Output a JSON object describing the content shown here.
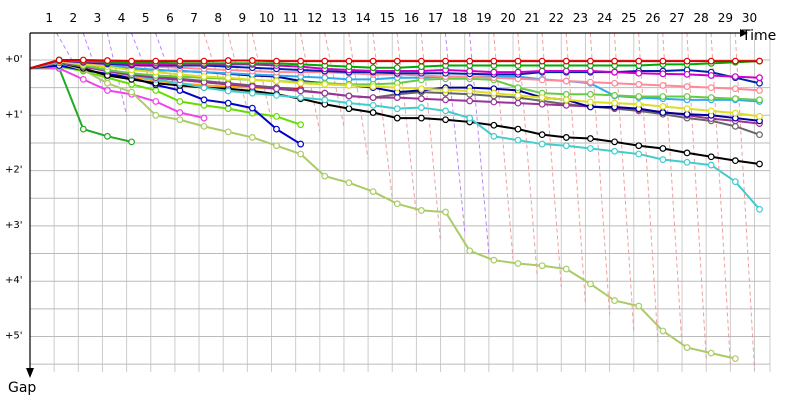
{
  "chart_data": {
    "type": "line",
    "xlabel": "Time",
    "ylabel": "Gap",
    "x_ticks": [
      1,
      2,
      3,
      4,
      5,
      6,
      7,
      8,
      9,
      10,
      11,
      12,
      13,
      14,
      15,
      16,
      17,
      18,
      19,
      20,
      21,
      22,
      23,
      24,
      25,
      26,
      27,
      28,
      29,
      30
    ],
    "y_ticks": [
      {
        "value": 0,
        "label": "+0'"
      },
      {
        "value": 1,
        "label": "+1'"
      },
      {
        "value": 2,
        "label": "+2'"
      },
      {
        "value": 3,
        "label": "+3'"
      },
      {
        "value": 4,
        "label": "+4'"
      },
      {
        "value": 5,
        "label": "+5'"
      }
    ],
    "xlim": [
      0,
      31
    ],
    "ylim": [
      0,
      5.8
    ],
    "series": [
      {
        "color": "#22aa22",
        "values": [
          0.15,
          1.25,
          1.38,
          1.48
        ]
      },
      {
        "color": "#ee44ee",
        "values": [
          0.15,
          0.35,
          0.55,
          0.62,
          0.75,
          0.95,
          1.05
        ]
      },
      {
        "color": "#66dd00",
        "values": [
          0.12,
          0.2,
          0.32,
          0.44,
          0.55,
          0.75,
          0.82,
          0.88,
          0.96,
          1.02,
          1.17
        ]
      },
      {
        "color": "#0000cc",
        "values": [
          0.1,
          0.18,
          0.25,
          0.32,
          0.45,
          0.55,
          0.72,
          0.78,
          0.87,
          1.25,
          1.52
        ]
      },
      {
        "color": "#ffaa00",
        "values": [
          0.02,
          0.12,
          0.2,
          0.3,
          0.38,
          0.42,
          0.46,
          0.48,
          0.5,
          0.52,
          0.55
        ]
      },
      {
        "color": "#ee0000",
        "values": [
          0.01,
          0.1,
          0.18,
          0.26,
          0.32,
          0.36,
          0.4,
          0.44,
          0.47,
          0.5,
          0.53
        ]
      },
      {
        "color": "#aacc66",
        "values": [
          0.05,
          0.18,
          0.42,
          0.58,
          1.0,
          1.08,
          1.2,
          1.3,
          1.4,
          1.55,
          1.7,
          2.1,
          2.22,
          2.38,
          2.6,
          2.72,
          2.75,
          3.45,
          3.62,
          3.68,
          3.72,
          3.78,
          4.05,
          4.35,
          4.45,
          4.9,
          5.2,
          5.3,
          5.4
        ]
      },
      {
        "color": "#000000",
        "values": [
          0.05,
          0.15,
          0.28,
          0.35,
          0.42,
          0.46,
          0.5,
          0.52,
          0.56,
          0.62,
          0.7,
          0.8,
          0.88,
          0.95,
          1.05,
          1.05,
          1.08,
          1.12,
          1.18,
          1.25,
          1.35,
          1.4,
          1.42,
          1.48,
          1.55,
          1.6,
          1.68,
          1.75,
          1.82,
          1.88
        ]
      },
      {
        "color": "#44cccc",
        "values": [
          0.05,
          0.12,
          0.2,
          0.28,
          0.35,
          0.42,
          0.5,
          0.56,
          0.6,
          0.64,
          0.68,
          0.72,
          0.78,
          0.82,
          0.88,
          0.86,
          0.92,
          1.05,
          1.38,
          1.45,
          1.52,
          1.55,
          1.6,
          1.65,
          1.7,
          1.8,
          1.85,
          1.9,
          2.2,
          2.7
        ]
      },
      {
        "color": "#666666",
        "values": [
          0.03,
          0.1,
          0.18,
          0.25,
          0.3,
          0.34,
          0.38,
          0.42,
          0.46,
          0.5,
          0.55,
          0.6,
          0.65,
          0.68,
          0.62,
          0.58,
          0.6,
          0.62,
          0.65,
          0.68,
          0.74,
          0.8,
          0.84,
          0.88,
          0.92,
          0.98,
          1.05,
          1.1,
          1.2,
          1.35
        ]
      },
      {
        "color": "#993399",
        "values": [
          0.04,
          0.12,
          0.2,
          0.27,
          0.32,
          0.36,
          0.4,
          0.44,
          0.48,
          0.52,
          0.56,
          0.6,
          0.65,
          0.68,
          0.68,
          0.7,
          0.72,
          0.74,
          0.76,
          0.78,
          0.8,
          0.82,
          0.84,
          0.86,
          0.9,
          0.94,
          1.0,
          1.06,
          1.1,
          1.15
        ]
      },
      {
        "color": "#000099",
        "values": [
          0.03,
          0.08,
          0.12,
          0.15,
          0.18,
          0.2,
          0.22,
          0.25,
          0.28,
          0.3,
          0.38,
          0.42,
          0.45,
          0.5,
          0.58,
          0.55,
          0.5,
          0.5,
          0.52,
          0.55,
          0.68,
          0.72,
          0.85,
          0.85,
          0.88,
          0.95,
          0.98,
          1.0,
          1.05,
          1.1
        ]
      },
      {
        "color": "#33aaee",
        "values": [
          0.02,
          0.06,
          0.1,
          0.14,
          0.18,
          0.2,
          0.22,
          0.24,
          0.26,
          0.28,
          0.3,
          0.32,
          0.35,
          0.35,
          0.32,
          0.32,
          0.3,
          0.3,
          0.3,
          0.3,
          0.35,
          0.38,
          0.42,
          0.65,
          0.68,
          0.7,
          0.72,
          0.72,
          0.72,
          0.75
        ]
      },
      {
        "color": "#66cc44",
        "values": [
          0.02,
          0.1,
          0.18,
          0.24,
          0.28,
          0.3,
          0.32,
          0.34,
          0.36,
          0.38,
          0.4,
          0.42,
          0.44,
          0.44,
          0.42,
          0.36,
          0.34,
          0.34,
          0.36,
          0.5,
          0.6,
          0.62,
          0.62,
          0.64,
          0.66,
          0.66,
          0.66,
          0.68,
          0.7,
          0.72
        ]
      },
      {
        "color": "#dddd22",
        "values": [
          0.03,
          0.08,
          0.12,
          0.18,
          0.22,
          0.26,
          0.3,
          0.32,
          0.36,
          0.38,
          0.42,
          0.44,
          0.46,
          0.48,
          0.5,
          0.52,
          0.54,
          0.56,
          0.6,
          0.64,
          0.68,
          0.72,
          0.76,
          0.78,
          0.8,
          0.84,
          0.88,
          0.92,
          0.96,
          1.02
        ]
      },
      {
        "color": "#ff8899",
        "values": [
          0.02,
          0.05,
          0.08,
          0.1,
          0.12,
          0.14,
          0.16,
          0.18,
          0.2,
          0.22,
          0.22,
          0.22,
          0.24,
          0.26,
          0.26,
          0.28,
          0.3,
          0.3,
          0.32,
          0.34,
          0.36,
          0.38,
          0.4,
          0.42,
          0.44,
          0.46,
          0.48,
          0.5,
          0.52,
          0.55
        ]
      },
      {
        "color": "#0022aa",
        "values": [
          0.01,
          0.04,
          0.07,
          0.09,
          0.1,
          0.1,
          0.1,
          0.12,
          0.14,
          0.16,
          0.18,
          0.2,
          0.22,
          0.22,
          0.24,
          0.24,
          0.24,
          0.25,
          0.26,
          0.26,
          0.22,
          0.22,
          0.22,
          0.22,
          0.2,
          0.2,
          0.18,
          0.22,
          0.32,
          0.42
        ]
      },
      {
        "color": "#cc00cc",
        "values": [
          0.0,
          0.03,
          0.05,
          0.07,
          0.08,
          0.08,
          0.08,
          0.08,
          0.08,
          0.1,
          0.12,
          0.16,
          0.18,
          0.2,
          0.2,
          0.2,
          0.18,
          0.2,
          0.22,
          0.22,
          0.2,
          0.2,
          0.2,
          0.22,
          0.24,
          0.25,
          0.26,
          0.28,
          0.3,
          0.32
        ]
      },
      {
        "color": "#00aa00",
        "values": [
          0.0,
          0.02,
          0.03,
          0.04,
          0.05,
          0.06,
          0.06,
          0.06,
          0.06,
          0.06,
          0.08,
          0.1,
          0.12,
          0.14,
          0.14,
          0.12,
          0.1,
          0.1,
          0.1,
          0.1,
          0.1,
          0.1,
          0.1,
          0.1,
          0.1,
          0.08,
          0.08,
          0.06,
          0.04,
          0.02
        ]
      },
      {
        "color": "#dd0000",
        "values": [
          0.0,
          0.0,
          0.01,
          0.02,
          0.02,
          0.02,
          0.02,
          0.01,
          0.01,
          0.02,
          0.02,
          0.02,
          0.02,
          0.02,
          0.02,
          0.02,
          0.02,
          0.02,
          0.02,
          0.02,
          0.02,
          0.02,
          0.02,
          0.02,
          0.02,
          0.02,
          0.02,
          0.02,
          0.02,
          0.02
        ]
      }
    ],
    "pit_stops": [
      {
        "color": "#aa66ff",
        "from_x": 1.1,
        "to_x": 2.0,
        "y": 0.2
      },
      {
        "color": "#aa66ff",
        "from_x": 2.2,
        "to_x": 3.0,
        "y": 0.5
      },
      {
        "color": "#aa66ff",
        "from_x": 3.2,
        "to_x": 4.0,
        "y": 1.0
      },
      {
        "color": "#aa66ff",
        "from_x": 4.2,
        "to_x": 5.0,
        "y": 0.4
      },
      {
        "color": "#aa66ff",
        "from_x": 5.2,
        "to_x": 6.0,
        "y": 0.5
      },
      {
        "color": "#ee8888",
        "from_x": 7.2,
        "to_x": 8.0,
        "y": 0.6
      },
      {
        "color": "#ee8888",
        "from_x": 8.2,
        "to_x": 9.0,
        "y": 0.9
      },
      {
        "color": "#ee8888",
        "from_x": 9.2,
        "to_x": 10.0,
        "y": 1.1
      },
      {
        "color": "#ee8888",
        "from_x": 11.2,
        "to_x": 12.0,
        "y": 1.3
      },
      {
        "color": "#ee8888",
        "from_x": 12.2,
        "to_x": 13.0,
        "y": 1.2
      },
      {
        "color": "#ee8888",
        "from_x": 13.2,
        "to_x": 14.0,
        "y": 1.8
      },
      {
        "color": "#ee8888",
        "from_x": 14.2,
        "to_x": 15.0,
        "y": 2.5
      },
      {
        "color": "#ee8888",
        "from_x": 15.2,
        "to_x": 16.0,
        "y": 2.8
      },
      {
        "color": "#ee8888",
        "from_x": 16.2,
        "to_x": 17.0,
        "y": 3.3
      },
      {
        "color": "#aa66ff",
        "from_x": 17.2,
        "to_x": 18.0,
        "y": 3.1
      },
      {
        "color": "#aa66ff",
        "from_x": 18.2,
        "to_x": 19.0,
        "y": 3.5
      },
      {
        "color": "#ee8888",
        "from_x": 19.2,
        "to_x": 20.0,
        "y": 3.6
      },
      {
        "color": "#ee8888",
        "from_x": 20.2,
        "to_x": 21.0,
        "y": 3.9
      },
      {
        "color": "#ee8888",
        "from_x": 21.2,
        "to_x": 22.0,
        "y": 4.1
      },
      {
        "color": "#ee8888",
        "from_x": 22.2,
        "to_x": 23.0,
        "y": 4.4
      },
      {
        "color": "#ee8888",
        "from_x": 23.2,
        "to_x": 24.0,
        "y": 4.6
      },
      {
        "color": "#ee8888",
        "from_x": 24.2,
        "to_x": 25.0,
        "y": 4.9
      },
      {
        "color": "#ee8888",
        "from_x": 25.2,
        "to_x": 26.0,
        "y": 5.1
      },
      {
        "color": "#ee8888",
        "from_x": 26.2,
        "to_x": 27.0,
        "y": 5.2
      },
      {
        "color": "#ee8888",
        "from_x": 27.2,
        "to_x": 28.0,
        "y": 5.4
      },
      {
        "color": "#ee8888",
        "from_x": 28.2,
        "to_x": 29.0,
        "y": 5.5
      },
      {
        "color": "#ee8888",
        "from_x": 29.2,
        "to_x": 30.0,
        "y": 5.6
      }
    ],
    "grid": true,
    "legend": "none"
  }
}
